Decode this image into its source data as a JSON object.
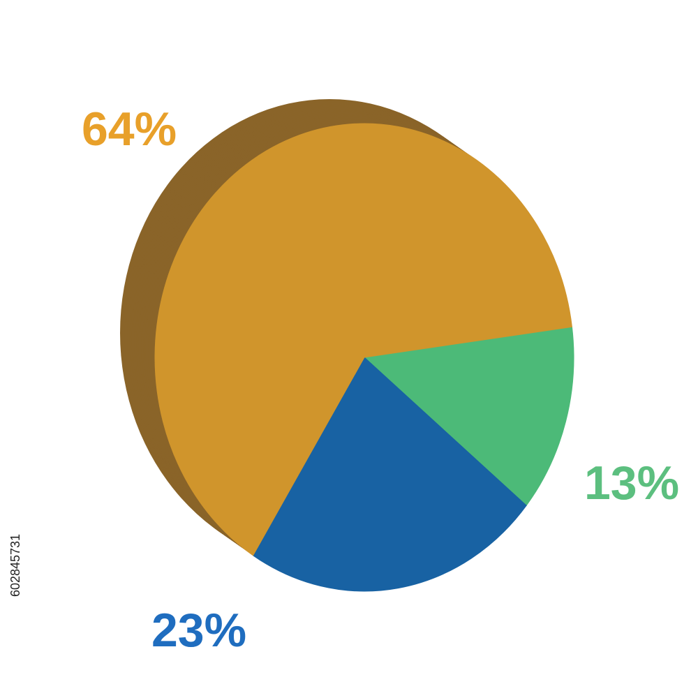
{
  "chart_data": {
    "type": "pie",
    "values": [
      13,
      23,
      64
    ],
    "value_labels": [
      "13%",
      "23%",
      "64%"
    ],
    "colors": [
      "#4cba78",
      "#1862a3",
      "#d0952c"
    ],
    "label_colors": [
      "#5cbf7f",
      "#1f6dbf",
      "#e8a02a"
    ],
    "side_color": "#8a6429"
  },
  "stock_id": "602845731"
}
